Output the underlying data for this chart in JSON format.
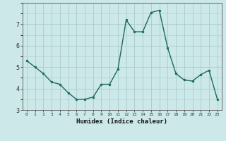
{
  "x": [
    0,
    1,
    2,
    3,
    4,
    5,
    6,
    7,
    8,
    9,
    10,
    11,
    12,
    13,
    14,
    15,
    16,
    17,
    18,
    19,
    20,
    21,
    22,
    23
  ],
  "y": [
    5.3,
    5.0,
    4.7,
    4.3,
    4.2,
    3.8,
    3.5,
    3.5,
    3.6,
    4.2,
    4.2,
    4.9,
    7.2,
    6.65,
    6.65,
    7.55,
    7.65,
    5.9,
    4.7,
    4.4,
    4.35,
    4.65,
    4.85,
    3.5
  ],
  "xlabel": "Humidex (Indice chaleur)",
  "background_color": "#cce8e8",
  "grid_color": "#aacccc",
  "line_color": "#1a6b5a",
  "marker_color": "#1a6b5a",
  "ylim": [
    3.0,
    8.0
  ],
  "xlim": [
    -0.5,
    23.5
  ],
  "yticks": [
    3,
    4,
    5,
    6,
    7
  ],
  "xticks": [
    0,
    1,
    2,
    3,
    4,
    5,
    6,
    7,
    8,
    9,
    10,
    11,
    12,
    13,
    14,
    15,
    16,
    17,
    18,
    19,
    20,
    21,
    22,
    23
  ]
}
